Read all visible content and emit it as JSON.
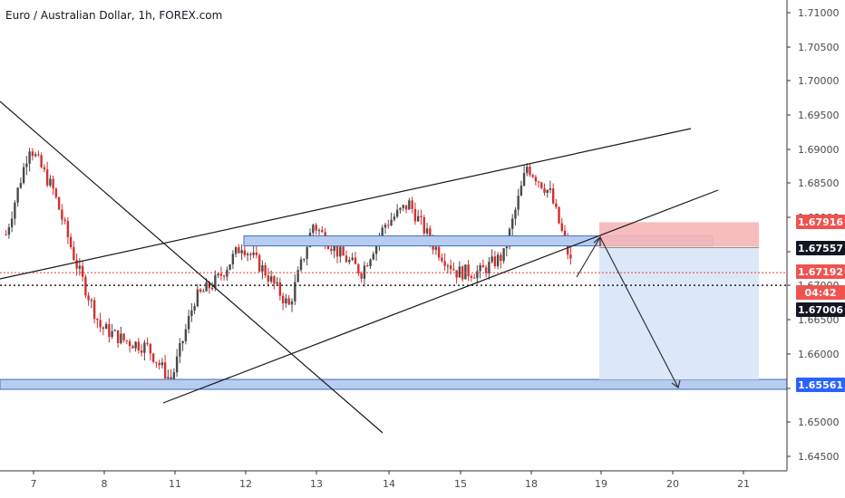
{
  "window": {
    "title": "Euro / Australian Dollar, 1h, FOREX.com"
  },
  "colors": {
    "up": "#26a69a",
    "down": "#ef5350",
    "candle_up": "#4a4a4a",
    "candle_down": "#d32f2f",
    "zone_blue": "#7ea1dc",
    "zone_blue_fill": "#b7ccef",
    "stop_fill": "#f6b6b6",
    "target_fill": "#dce8f7",
    "line": "#1a1a1a",
    "badge_red": "#ef5350",
    "badge_blue": "#2962ff",
    "badge_black": "#131722"
  },
  "chart_data": {
    "type": "candlestick",
    "title": "Euro / Australian Dollar, 1h, FOREX.com",
    "ylim": [
      1.643,
      1.7125
    ],
    "y_ticks": [
      "1.71000",
      "1.70500",
      "1.70000",
      "1.69500",
      "1.69000",
      "1.68500",
      "1.68000",
      "1.67500",
      "1.67000",
      "1.66500",
      "1.66000",
      "1.65500",
      "1.65000",
      "1.64500"
    ],
    "x_ticks": [
      "7",
      "8",
      "11",
      "12",
      "13",
      "14",
      "15",
      "18",
      "19",
      "20",
      "21"
    ],
    "price_badges": [
      {
        "label": "1.67916",
        "kind": "red"
      },
      {
        "label": "1.67557",
        "kind": "black"
      },
      {
        "label": "1.67192",
        "kind": "red"
      },
      {
        "label": "04:42",
        "kind": "red"
      },
      {
        "label": "1.67006",
        "kind": "black"
      },
      {
        "label": "1.65561",
        "kind": "blue"
      }
    ],
    "current_price": 1.67192,
    "countdown": "04:42",
    "entry_price": 1.67557,
    "stop_price": 1.67916,
    "target_price": 1.65561,
    "dotted_level": 1.67006,
    "path_days": [
      {
        "day": "7",
        "anchors": [
          1.6775,
          1.6905,
          1.684,
          1.673
        ]
      },
      {
        "day": "8",
        "anchors": [
          1.673,
          1.664,
          1.662,
          1.661
        ]
      },
      {
        "day": "11",
        "anchors": [
          1.661,
          1.656,
          1.668,
          1.671
        ]
      },
      {
        "day": "12",
        "anchors": [
          1.671,
          1.676,
          1.672,
          1.667
        ]
      },
      {
        "day": "13",
        "anchors": [
          1.667,
          1.679,
          1.675,
          1.672
        ]
      },
      {
        "day": "14",
        "anchors": [
          1.672,
          1.679,
          1.682,
          1.676
        ]
      },
      {
        "day": "15",
        "anchors": [
          1.676,
          1.672,
          1.672,
          1.6745
        ]
      },
      {
        "day": "18",
        "anchors": [
          1.6745,
          1.6875,
          1.6835,
          1.672
        ]
      }
    ]
  }
}
